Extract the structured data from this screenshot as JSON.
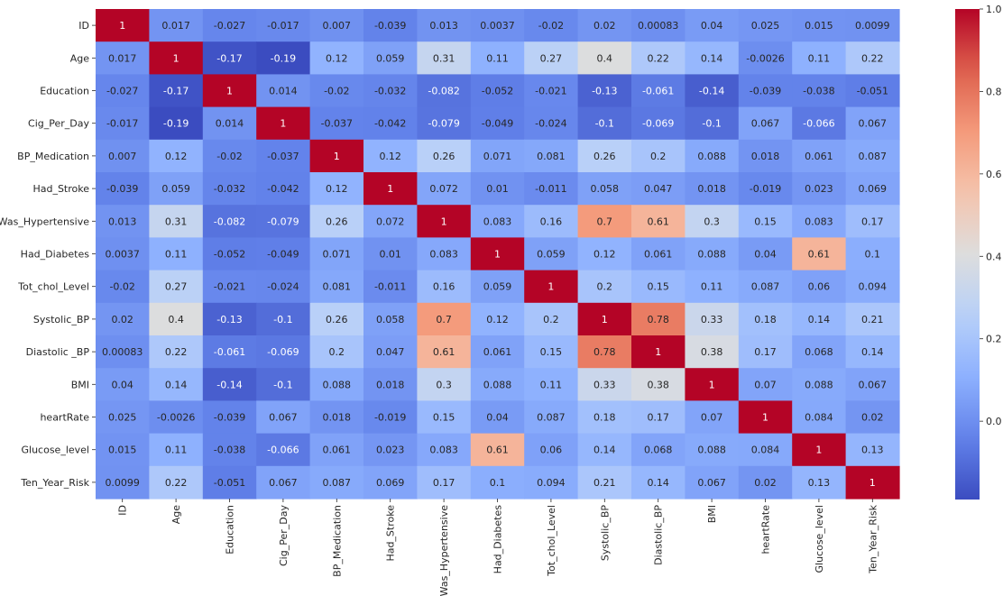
{
  "chart_data": {
    "type": "heatmap",
    "colormap": "coolwarm",
    "labels": [
      "ID",
      "Age",
      "Education",
      "Cig_Per_Day",
      "BP_Medication",
      "Had_Stroke",
      "Was_Hypertensive",
      "Had_Diabetes",
      "Tot_chol_Level",
      "Systolic_BP",
      "Diastolic_BP",
      "BMI",
      "heartRate",
      "Glucose_level",
      "Ten_Year_Risk"
    ],
    "row_labels": [
      "ID",
      "Age",
      "Education",
      "Cig_Per_Day",
      "BP_Medication",
      "Had_Stroke",
      "Was_Hypertensive",
      "Had_Diabetes",
      "Tot_chol_Level",
      "Systolic_BP",
      "Diastolic _BP",
      "BMI",
      "heartRate",
      "Glucose_level",
      "Ten_Year_Risk"
    ],
    "values": [
      [
        1,
        0.017,
        -0.027,
        -0.017,
        0.007,
        -0.039,
        0.013,
        0.0037,
        -0.02,
        0.02,
        0.00083,
        0.04,
        0.025,
        0.015,
        0.0099
      ],
      [
        0.017,
        1,
        -0.17,
        -0.19,
        0.12,
        0.059,
        0.31,
        0.11,
        0.27,
        0.4,
        0.22,
        0.14,
        -0.0026,
        0.11,
        0.22
      ],
      [
        -0.027,
        -0.17,
        1,
        0.014,
        -0.02,
        -0.032,
        -0.082,
        -0.052,
        -0.021,
        -0.13,
        -0.061,
        -0.14,
        -0.039,
        -0.038,
        -0.051
      ],
      [
        -0.017,
        -0.19,
        0.014,
        1,
        -0.037,
        -0.042,
        -0.079,
        -0.049,
        -0.024,
        -0.1,
        -0.069,
        -0.1,
        0.067,
        -0.066,
        0.067
      ],
      [
        0.007,
        0.12,
        -0.02,
        -0.037,
        1,
        0.12,
        0.26,
        0.071,
        0.081,
        0.26,
        0.2,
        0.088,
        0.018,
        0.061,
        0.087
      ],
      [
        -0.039,
        0.059,
        -0.032,
        -0.042,
        0.12,
        1,
        0.072,
        0.01,
        -0.011,
        0.058,
        0.047,
        0.018,
        -0.019,
        0.023,
        0.069
      ],
      [
        0.013,
        0.31,
        -0.082,
        -0.079,
        0.26,
        0.072,
        1,
        0.083,
        0.16,
        0.7,
        0.61,
        0.3,
        0.15,
        0.083,
        0.17
      ],
      [
        0.0037,
        0.11,
        -0.052,
        -0.049,
        0.071,
        0.01,
        0.083,
        1,
        0.059,
        0.12,
        0.061,
        0.088,
        0.04,
        0.61,
        0.1
      ],
      [
        -0.02,
        0.27,
        -0.021,
        -0.024,
        0.081,
        -0.011,
        0.16,
        0.059,
        1,
        0.2,
        0.15,
        0.11,
        0.087,
        0.06,
        0.094
      ],
      [
        0.02,
        0.4,
        -0.13,
        -0.1,
        0.26,
        0.058,
        0.7,
        0.12,
        0.2,
        1,
        0.78,
        0.33,
        0.18,
        0.14,
        0.21
      ],
      [
        0.00083,
        0.22,
        -0.061,
        -0.069,
        0.2,
        0.047,
        0.61,
        0.061,
        0.15,
        0.78,
        1,
        0.38,
        0.17,
        0.068,
        0.14
      ],
      [
        0.04,
        0.14,
        -0.14,
        -0.1,
        0.088,
        0.018,
        0.3,
        0.088,
        0.11,
        0.33,
        0.38,
        1,
        0.07,
        0.088,
        0.067
      ],
      [
        0.025,
        -0.0026,
        -0.039,
        0.067,
        0.018,
        -0.019,
        0.15,
        0.04,
        0.087,
        0.18,
        0.17,
        0.07,
        1,
        0.084,
        0.02
      ],
      [
        0.015,
        0.11,
        -0.038,
        -0.066,
        0.061,
        0.023,
        0.083,
        0.61,
        0.06,
        0.14,
        0.068,
        0.088,
        0.084,
        1,
        0.13
      ],
      [
        0.0099,
        0.22,
        -0.051,
        0.067,
        0.087,
        0.069,
        0.17,
        0.1,
        0.094,
        0.21,
        0.14,
        0.067,
        0.02,
        0.13,
        1
      ]
    ],
    "vmin": -0.19,
    "vmax": 1.0,
    "colorbar": {
      "ticks": [
        0.0,
        0.2,
        0.4,
        0.6,
        0.8,
        1.0
      ],
      "tick_labels": [
        "0.0",
        "0.2",
        "0.4",
        "0.6",
        "0.8",
        "1.0"
      ]
    },
    "annotated": true,
    "grid": false,
    "title": "",
    "xlabel": "",
    "ylabel": ""
  }
}
